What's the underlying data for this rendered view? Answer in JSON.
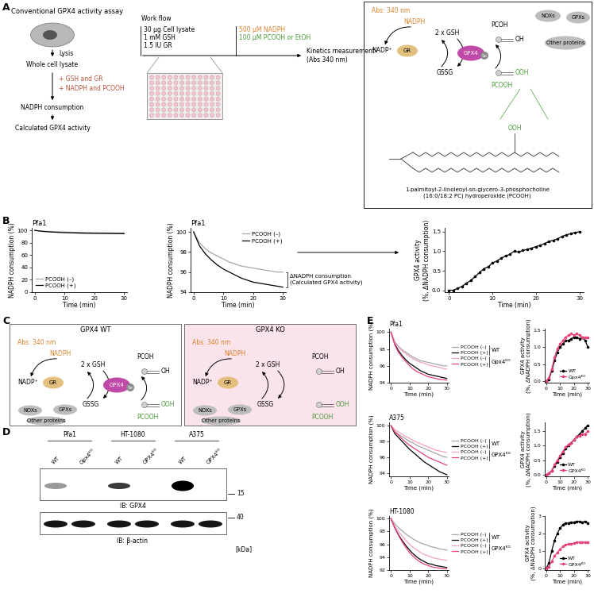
{
  "panel_labels": [
    "A",
    "B",
    "C",
    "D",
    "E"
  ],
  "diagram_A": {
    "title": "Conventional GPX4 activity assay",
    "steps": [
      "Lysis",
      "Whole cell lysate",
      "+ GSH and GR",
      "+ NADPH and PCOOH",
      "NADPH consumption",
      "Calculated GPX4 activity"
    ],
    "workflow": {
      "title": "Work flow",
      "items_1": [
        "30 µg Cell lysate",
        "1 mM GSH",
        "1.5 IU GR"
      ],
      "items_2": [
        "500 µM NADPH",
        "100 µM PCOOH or EtOH"
      ],
      "result": "Kinetics measurement\n(Abs 340 nm)"
    },
    "reaction": {
      "abs": "Abs: 340 nm",
      "nadph": "NADPH",
      "nadp": "NADP⁺",
      "gr": "GR",
      "gsh": "2 x GSH",
      "gssg": "GSSG",
      "gpx4": "GPX4",
      "se": "Se",
      "pcoh": "PCOH",
      "oh": "OH",
      "pcooh": "PCOOH",
      "ooh": "OOH",
      "others": [
        "NOXs",
        "GPXs",
        "Other proteins"
      ]
    },
    "structure": {
      "group": "OOH",
      "name": "1-palmitoyl-2-linoleoyl-sn-glycero-3-phosphocholine\n(16:0/18:2 PC) hydroperoxide (PCOOH)"
    }
  },
  "diagram_C": {
    "titles": [
      "GPX4 WT",
      "GPX4 KO"
    ],
    "reaction": {
      "abs": "Abs: 340 nm",
      "nadph": "NADPH",
      "nadp": "NADP⁺",
      "gr": "GR",
      "gsh": "2 x GSH",
      "gssg": "GSSG",
      "gpx4": "GPX4",
      "se": "Se",
      "pcoh": "PCOH",
      "oh": "OH",
      "pcooh": "PCOOH",
      "ooh": "OOH",
      "others": [
        "NOXs",
        "GPXs",
        "Other proteins"
      ]
    }
  },
  "blot_D": {
    "groups": [
      "Pfa1",
      "HT-1080",
      "A375"
    ],
    "lanes": [
      "WT",
      "Gpx4ᴷᴼ",
      "WT",
      "GPX4ᴷᴼ",
      "WT",
      "GPX4ᴷᴼ"
    ],
    "blots": [
      "IB: GPX4",
      "IB: β-actin"
    ],
    "markers": [
      15,
      40
    ],
    "unit": "[kDa]"
  },
  "chart_data": [
    {
      "type": "line",
      "title": "Pfa1",
      "x_label": "Time (min)",
      "y_label": "NADPH consumption (%)",
      "x": [
        0,
        2,
        4,
        6,
        8,
        10,
        12,
        14,
        16,
        18,
        20,
        22,
        24,
        26,
        28,
        30
      ],
      "xlim": [
        -1,
        31
      ],
      "ylim": [
        0,
        104
      ],
      "xticks": [
        0,
        10,
        20,
        30
      ],
      "yticks": [
        0,
        20,
        40,
        60,
        80,
        100
      ],
      "legend": "lower left",
      "series": [
        {
          "name": "PCOOH (–)",
          "color": "#a6a6a6",
          "values": [
            100,
            98.9,
            98.3,
            97.9,
            97.6,
            97.3,
            97.0,
            96.8,
            96.6,
            96.5,
            96.4,
            96.3,
            96.2,
            96.1,
            96.0,
            96.0
          ]
        },
        {
          "name": "PCOOH (+)",
          "color": "#000000",
          "values": [
            100,
            98.6,
            97.8,
            97.2,
            96.7,
            96.3,
            96.0,
            95.7,
            95.4,
            95.2,
            95.0,
            94.9,
            94.8,
            94.7,
            94.6,
            94.5
          ]
        }
      ]
    },
    {
      "type": "line",
      "title": "Pfa1",
      "x_label": "Time (min)",
      "y_label": "NADPH consumption (%)",
      "x": [
        0,
        2,
        4,
        6,
        8,
        10,
        12,
        14,
        16,
        18,
        20,
        22,
        24,
        26,
        28,
        30
      ],
      "xlim": [
        -1,
        31
      ],
      "ylim": [
        94,
        100.4
      ],
      "xticks": [
        0,
        10,
        20,
        30
      ],
      "yticks": [
        94,
        96,
        98,
        100
      ],
      "legend": "upper right",
      "annotations": [
        "ΔNADPH consumption\n(Calculated GPX4 activity)"
      ],
      "series": [
        {
          "name": "PCOOH (–)",
          "color": "#a6a6a6",
          "values": [
            100,
            98.9,
            98.3,
            97.9,
            97.6,
            97.3,
            97.0,
            96.8,
            96.6,
            96.5,
            96.4,
            96.3,
            96.2,
            96.1,
            96.0,
            96.0
          ]
        },
        {
          "name": "PCOOH (+)",
          "color": "#000000",
          "values": [
            100,
            98.6,
            97.8,
            97.2,
            96.7,
            96.3,
            96.0,
            95.7,
            95.4,
            95.2,
            95.0,
            94.9,
            94.8,
            94.7,
            94.6,
            94.5
          ]
        }
      ]
    },
    {
      "type": "line",
      "x_label": "Time (min)",
      "y_label": "GPX4 activity\n(%, ΔNADPH consumption)",
      "x": [
        0,
        1,
        2,
        3,
        4,
        5,
        6,
        7,
        8,
        9,
        10,
        11,
        12,
        13,
        14,
        15,
        16,
        17,
        18,
        19,
        20,
        21,
        22,
        23,
        24,
        25,
        26,
        27,
        28,
        29,
        30
      ],
      "xlim": [
        -1,
        31
      ],
      "ylim": [
        -0.05,
        1.6
      ],
      "xticks": [
        0,
        10,
        20,
        30
      ],
      "yticks": [
        {
          "value": 0,
          "label": "0.0"
        },
        0.5,
        {
          "value": 1,
          "label": "1.0"
        },
        1.5
      ],
      "series": [
        {
          "color": "#000000",
          "marker": "o",
          "line_style": "solid",
          "values": [
            0,
            0,
            0.05,
            0.1,
            0.18,
            0.25,
            0.35,
            0.45,
            0.55,
            0.6,
            0.7,
            0.75,
            0.82,
            0.88,
            0.92,
            1.0,
            0.98,
            1.02,
            1.05,
            1.08,
            1.12,
            1.15,
            1.2,
            1.25,
            1.28,
            1.32,
            1.38,
            1.42,
            1.45,
            1.48,
            1.5
          ]
        }
      ]
    },
    {
      "type": "line",
      "title": "Pfa1",
      "x_label": "Time (min)",
      "y_label": "NADPH consumption (%)",
      "x": [
        0,
        2,
        4,
        6,
        8,
        10,
        12,
        14,
        16,
        18,
        20,
        22,
        24,
        26,
        28,
        30
      ],
      "xlim": [
        -1,
        31
      ],
      "ylim": [
        94,
        100.4
      ],
      "xticks": [
        0,
        10,
        20,
        30
      ],
      "yticks": [
        94,
        96,
        98,
        100
      ],
      "legend": "right",
      "series": [
        {
          "name": "PCOOH (–)",
          "group": "WT",
          "color": "#a6a6a6",
          "values": [
            100,
            98.9,
            98.3,
            97.9,
            97.6,
            97.3,
            97.0,
            96.8,
            96.6,
            96.5,
            96.4,
            96.3,
            96.2,
            96.1,
            96.0,
            96.0
          ]
        },
        {
          "name": "PCOOH (+)",
          "group": "WT",
          "color": "#000000",
          "values": [
            100,
            98.6,
            97.8,
            97.2,
            96.7,
            96.3,
            96.0,
            95.7,
            95.4,
            95.2,
            95.0,
            94.9,
            94.8,
            94.7,
            94.6,
            94.5
          ]
        },
        {
          "name": "PCOOH (–)",
          "group": "Gpx4ᴷᴼ",
          "color": "#f4a0c8",
          "values": [
            100,
            98.8,
            98.2,
            97.8,
            97.4,
            97.1,
            96.8,
            96.6,
            96.4,
            96.3,
            96.1,
            96.0,
            95.9,
            95.8,
            95.7,
            95.6
          ]
        },
        {
          "name": "PCOOH (+)",
          "group": "Gpx4ᴷᴼ",
          "color": "#e8407f",
          "values": [
            100,
            98.5,
            97.6,
            97.0,
            96.5,
            96.0,
            95.6,
            95.3,
            95.1,
            94.9,
            94.7,
            94.6,
            94.5,
            94.4,
            94.35,
            94.3
          ]
        }
      ]
    },
    {
      "type": "line",
      "x_label": "Time (min)",
      "y_label": "GPX4 activity\n(%, ΔNADPH consumption)",
      "x": [
        0,
        2,
        4,
        6,
        8,
        10,
        12,
        14,
        16,
        18,
        20,
        22,
        24,
        26,
        28,
        30
      ],
      "xlim": [
        -1,
        31
      ],
      "ylim": [
        -0.05,
        1.55
      ],
      "xticks": [
        0,
        10,
        20,
        30
      ],
      "yticks": [
        {
          "value": 0,
          "label": "0.0"
        },
        0.5,
        {
          "value": 1,
          "label": "1.0"
        },
        1.5
      ],
      "legend": "lower right",
      "series": [
        {
          "name": "WT",
          "color": "#000000",
          "marker": "o",
          "line_style": "solid",
          "values": [
            0,
            0.05,
            0.3,
            0.6,
            0.85,
            1.0,
            1.1,
            1.2,
            1.2,
            1.25,
            1.3,
            1.3,
            1.25,
            1.3,
            1.2,
            1.0
          ]
        },
        {
          "name": "Gpx4ᴷᴼ",
          "color": "#e8407f",
          "marker": "o",
          "line_style": "solid",
          "values": [
            0,
            0.1,
            0.35,
            0.7,
            0.95,
            1.1,
            1.2,
            1.3,
            1.35,
            1.4,
            1.35,
            1.4,
            1.35,
            1.3,
            1.3,
            1.3
          ]
        }
      ]
    },
    {
      "type": "line",
      "title": "A375",
      "x_label": "Time (min)",
      "y_label": "NADPH consumption (%)",
      "x": [
        0,
        2,
        4,
        6,
        8,
        10,
        12,
        14,
        16,
        18,
        20,
        22,
        24,
        26,
        28,
        30
      ],
      "xlim": [
        -1,
        31
      ],
      "ylim": [
        93.6,
        100.4
      ],
      "xticks": [
        0,
        10,
        20,
        30
      ],
      "yticks": [
        94,
        96,
        98,
        100
      ],
      "legend": "right",
      "series": [
        {
          "name": "PCOOH (–)",
          "group": "WT",
          "color": "#a6a6a6",
          "values": [
            100,
            99.3,
            98.9,
            98.6,
            98.3,
            98.0,
            97.8,
            97.5,
            97.3,
            97.1,
            96.9,
            96.7,
            96.5,
            96.3,
            96.1,
            96.0
          ]
        },
        {
          "name": "PCOOH (+)",
          "group": "WT",
          "color": "#000000",
          "values": [
            100,
            99.0,
            98.5,
            98.0,
            97.5,
            97.0,
            96.6,
            96.2,
            95.8,
            95.4,
            95.1,
            94.8,
            94.5,
            94.2,
            94.0,
            93.8
          ]
        },
        {
          "name": "PCOOH (–)",
          "group": "GPX4ᴷᴼ",
          "color": "#f4a0c8",
          "values": [
            100,
            99.5,
            99.2,
            98.9,
            98.6,
            98.4,
            98.1,
            97.9,
            97.7,
            97.5,
            97.3,
            97.1,
            96.9,
            96.8,
            96.7,
            96.6
          ]
        },
        {
          "name": "PCOOH (+)",
          "group": "GPX4ᴷᴼ",
          "color": "#e8407f",
          "values": [
            100,
            99.2,
            98.8,
            98.3,
            97.9,
            97.5,
            97.2,
            96.9,
            96.6,
            96.3,
            96.0,
            95.8,
            95.6,
            95.4,
            95.2,
            95.0
          ]
        }
      ]
    },
    {
      "type": "line",
      "x_label": "Time (min)",
      "y_label": "GPX4 activity\n(%, ΔNADPH consumption)",
      "x": [
        0,
        2,
        4,
        6,
        8,
        10,
        12,
        14,
        16,
        18,
        20,
        22,
        24,
        26,
        28,
        30
      ],
      "xlim": [
        -1,
        31
      ],
      "ylim": [
        -0.05,
        1.8
      ],
      "xticks": [
        0,
        10,
        20,
        30
      ],
      "yticks": [
        {
          "value": 0,
          "label": "0.0"
        },
        0.5,
        {
          "value": 1,
          "label": "1.0"
        },
        1.5
      ],
      "legend": "lower right",
      "series": [
        {
          "name": "WT",
          "color": "#000000",
          "marker": "o",
          "line_style": "solid",
          "values": [
            0,
            0.05,
            0.15,
            0.3,
            0.45,
            0.6,
            0.75,
            0.9,
            1.0,
            1.1,
            1.2,
            1.3,
            1.4,
            1.5,
            1.6,
            1.7
          ]
        },
        {
          "name": "GPX4ᴷᴼ",
          "color": "#e8407f",
          "marker": "o",
          "line_style": "solid",
          "values": [
            0,
            0.05,
            0.15,
            0.35,
            0.5,
            0.65,
            0.8,
            0.95,
            1.05,
            1.1,
            1.2,
            1.3,
            1.35,
            1.4,
            1.4,
            1.5
          ]
        }
      ]
    },
    {
      "type": "line",
      "title": "HT-1080",
      "x_label": "Time (min)",
      "y_label": "NADPH consumption (%)",
      "x": [
        0,
        2,
        4,
        6,
        8,
        10,
        12,
        14,
        16,
        18,
        20,
        22,
        24,
        26,
        28,
        30
      ],
      "xlim": [
        -1,
        31
      ],
      "ylim": [
        92,
        100.4
      ],
      "xticks": [
        0,
        10,
        20,
        30
      ],
      "yticks": [
        92,
        94,
        96,
        98,
        100
      ],
      "legend": "right",
      "series": [
        {
          "name": "PCOOH (–)",
          "group": "WT",
          "color": "#a6a6a6",
          "values": [
            100,
            99.2,
            98.6,
            98.1,
            97.6,
            97.2,
            96.8,
            96.5,
            96.2,
            96.0,
            95.8,
            95.6,
            95.5,
            95.3,
            95.2,
            95.1
          ]
        },
        {
          "name": "PCOOH (+)",
          "group": "WT",
          "color": "#000000",
          "values": [
            100,
            98.6,
            97.5,
            96.6,
            95.8,
            95.1,
            94.5,
            94.0,
            93.6,
            93.3,
            93.0,
            92.9,
            92.7,
            92.6,
            92.5,
            92.4
          ]
        },
        {
          "name": "PCOOH (–)",
          "group": "GPX4ᴷᴼ",
          "color": "#f4a0c8",
          "values": [
            100,
            98.9,
            98.0,
            97.3,
            96.6,
            96.0,
            95.5,
            95.1,
            94.7,
            94.4,
            94.2,
            94.0,
            93.8,
            93.7,
            93.6,
            93.5
          ]
        },
        {
          "name": "PCOOH (+)",
          "group": "GPX4ᴷᴼ",
          "color": "#e8407f",
          "values": [
            100,
            98.6,
            97.4,
            96.4,
            95.5,
            94.7,
            94.1,
            93.6,
            93.2,
            92.9,
            92.7,
            92.5,
            92.4,
            92.3,
            92.2,
            92.2
          ]
        }
      ]
    },
    {
      "type": "line",
      "x_label": "Time (min)",
      "y_label": "GPX4 activity\n(%, ΔNADPH consumption)",
      "x": [
        0,
        2,
        4,
        6,
        8,
        10,
        12,
        14,
        16,
        18,
        20,
        22,
        24,
        26,
        28,
        30
      ],
      "xlim": [
        -1,
        31
      ],
      "ylim": [
        -0.1,
        3
      ],
      "xticks": [
        0,
        10,
        20,
        30
      ],
      "yticks": [
        0,
        1,
        2,
        3
      ],
      "legend": "lower right",
      "series": [
        {
          "name": "WT",
          "color": "#000000",
          "marker": "o",
          "line_style": "solid",
          "values": [
            0,
            0.3,
            1.0,
            1.6,
            2.0,
            2.3,
            2.5,
            2.6,
            2.6,
            2.65,
            2.65,
            2.7,
            2.7,
            2.65,
            2.7,
            2.6
          ]
        },
        {
          "name": "GPX4ᴷᴼ",
          "color": "#e8407f",
          "marker": "o",
          "line_style": "solid",
          "values": [
            0,
            0.1,
            0.4,
            0.7,
            0.9,
            1.1,
            1.25,
            1.35,
            1.4,
            1.4,
            1.45,
            1.5,
            1.5,
            1.5,
            1.5,
            1.5
          ]
        }
      ]
    }
  ]
}
